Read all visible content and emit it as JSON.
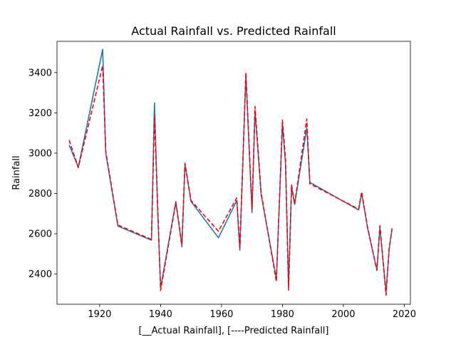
{
  "chart_data": {
    "type": "line",
    "title": "Actual Rainfall vs. Predicted Rainfall",
    "xlabel": "[__Actual Rainfall],  [----Predicted Rainfall]",
    "ylabel": "Rainfall",
    "xlim": [
      1906,
      2022
    ],
    "ylim": [
      2250,
      3555
    ],
    "xticks": [
      1920,
      1940,
      1960,
      1980,
      2000,
      2020
    ],
    "yticks": [
      2400,
      2600,
      2800,
      3000,
      3200,
      3400
    ],
    "grid": false,
    "colors": {
      "actual": "#1f77b4",
      "predicted": "#ff0000"
    },
    "x": [
      1910,
      1913,
      1921,
      1922,
      1926,
      1937,
      1938,
      1939,
      1940,
      1945,
      1947,
      1948,
      1950,
      1959,
      1965,
      1966,
      1968,
      1970,
      1971,
      1973,
      1978,
      1980,
      1981,
      1982,
      1983,
      1984,
      1988,
      1989,
      2005,
      2006,
      2008,
      2011,
      2012,
      2014,
      2015,
      2016
    ],
    "series": [
      {
        "values": [
          3040,
          2930,
          3515,
          3000,
          2638,
          2568,
          3250,
          2745,
          2330,
          2760,
          2535,
          2945,
          2760,
          2580,
          2765,
          2518,
          3390,
          2705,
          3210,
          2795,
          2375,
          3140,
          2950,
          2338,
          2835,
          2745,
          3125,
          2855,
          2718,
          2800,
          2625,
          2420,
          2632,
          2310,
          2520,
          2625
        ]
      },
      {
        "values": [
          3065,
          2928,
          3435,
          3010,
          2643,
          2572,
          3185,
          2755,
          2318,
          2755,
          2548,
          2950,
          2765,
          2612,
          2778,
          2530,
          3400,
          2720,
          3232,
          2805,
          2362,
          3165,
          2975,
          2320,
          2842,
          2748,
          3170,
          2848,
          2722,
          2808,
          2628,
          2418,
          2640,
          2295,
          2525,
          2628
        ]
      }
    ]
  }
}
